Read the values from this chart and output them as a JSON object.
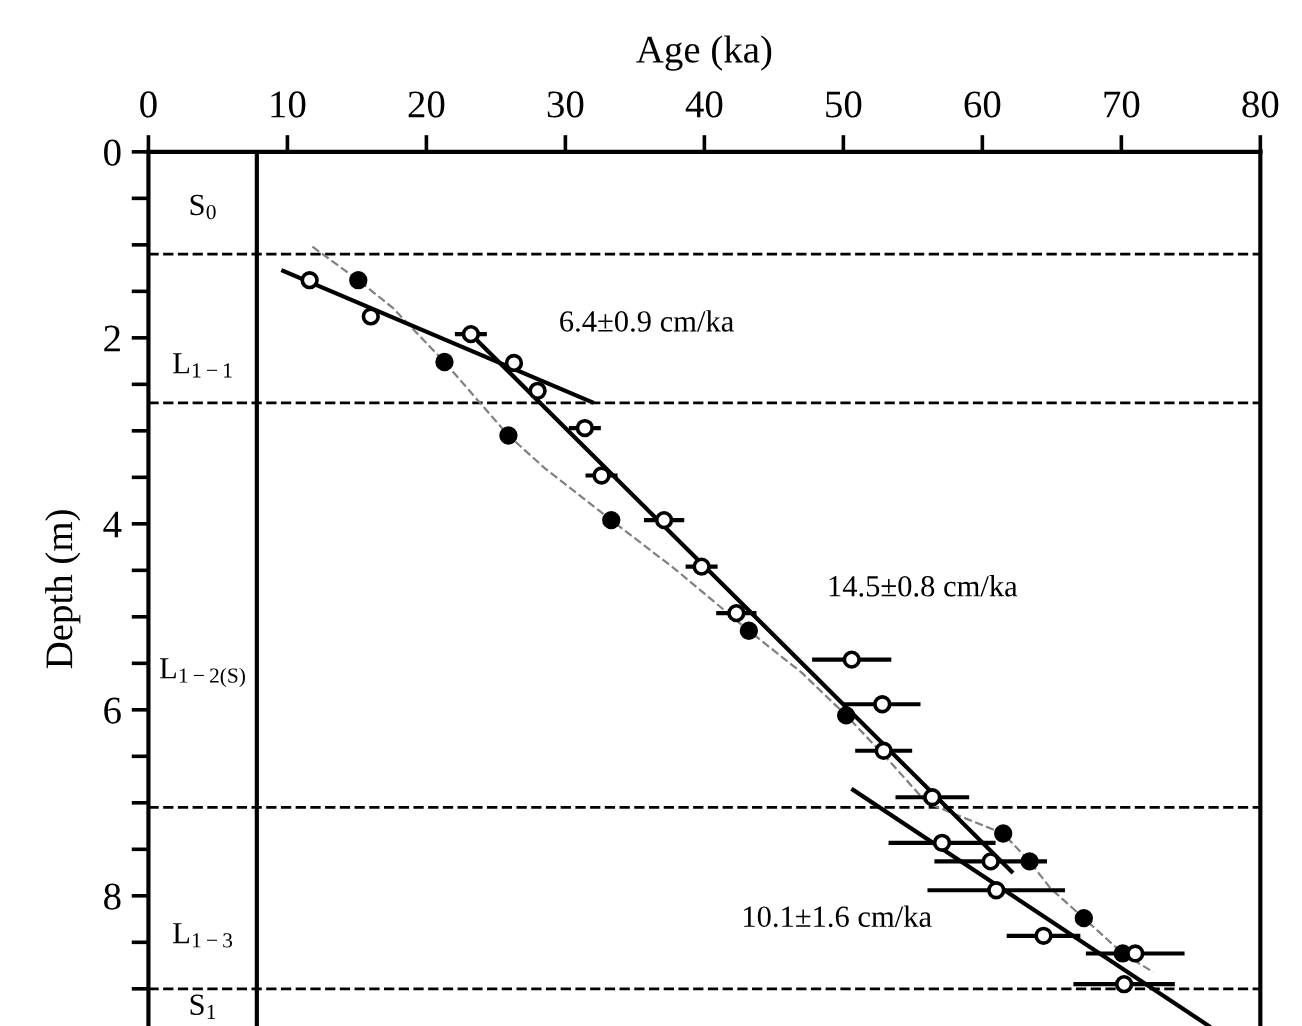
{
  "chart_data": {
    "type": "scatter",
    "xlabel": "Age (ka)",
    "ylabel": "Depth (m)",
    "xlim": [
      0,
      80
    ],
    "xticks": [
      0,
      10,
      20,
      30,
      40,
      50,
      60,
      70,
      80
    ],
    "ylim": [
      9.4,
      0
    ],
    "yticks": [
      0,
      {
        "value": 0.5,
        "label": null
      },
      {
        "value": 1,
        "label": null
      },
      {
        "value": 1.5,
        "label": null
      },
      2,
      {
        "value": 2.5,
        "label": null
      },
      {
        "value": 3,
        "label": null
      },
      {
        "value": 3.5,
        "label": null
      },
      4,
      {
        "value": 4.5,
        "label": null
      },
      {
        "value": 5,
        "label": null
      },
      {
        "value": 5.5,
        "label": null
      },
      6,
      {
        "value": 6.5,
        "label": null
      },
      {
        "value": 7,
        "label": null
      },
      {
        "value": 7.5,
        "label": null
      },
      8,
      {
        "value": 8.5,
        "label": null
      },
      {
        "value": 9,
        "label": null
      }
    ],
    "grid": false,
    "legend": false,
    "series": [
      {
        "type": "line",
        "line_style": "dashed",
        "color": "#808080",
        "x": [
          11.8,
          15.1,
          17.6,
          21.3,
          25.9,
          28.5,
          33.3,
          38,
          43.2,
          47,
          50.2,
          53,
          56,
          61.5,
          63.4,
          64.9,
          67.3,
          70.1,
          72.3
        ],
        "values": [
          1.02,
          1.38,
          1.68,
          2.26,
          3.05,
          3.4,
          3.96,
          4.5,
          5.15,
          5.6,
          6.06,
          6.5,
          7.0,
          7.33,
          7.63,
          7.92,
          8.24,
          8.62,
          8.82
        ]
      },
      {
        "type": "line",
        "line_style": "solid",
        "color": "#000000",
        "x": [
          9.7,
          31.9
        ],
        "values": [
          1.28,
          2.69
        ]
      },
      {
        "type": "line",
        "line_style": "solid",
        "color": "#000000",
        "x": [
          23.2,
          62.1
        ],
        "values": [
          1.96,
          7.74
        ]
      },
      {
        "type": "line",
        "line_style": "solid",
        "color": "#000000",
        "x": [
          50.7,
          76.3
        ],
        "values": [
          6.86,
          9.4
        ]
      },
      {
        "marker": "circle",
        "color": "#000000",
        "x": [
          15.1,
          21.3,
          25.9,
          33.3,
          43.2,
          50.2,
          61.5,
          63.4,
          67.3,
          70.1
        ],
        "values": [
          1.38,
          2.26,
          3.05,
          3.96,
          5.15,
          6.06,
          7.33,
          7.63,
          8.24,
          8.62
        ]
      },
      {
        "marker": "circle",
        "color": "#ffffff",
        "x": [
          11.6,
          16.0,
          23.2,
          26.3,
          28.0,
          31.4,
          32.6,
          37.1,
          39.8,
          42.3,
          50.6,
          52.8,
          52.9,
          56.4,
          57.1,
          60.6,
          61.0,
          64.4,
          71.0,
          70.2
        ],
        "values": [
          1.38,
          1.77,
          1.96,
          2.27,
          2.57,
          2.97,
          3.48,
          3.96,
          4.46,
          4.96,
          5.46,
          5.94,
          6.44,
          6.94,
          7.43,
          7.63,
          7.94,
          8.43,
          8.62,
          8.95
        ],
        "xerrors": [
          null,
          null,
          1.0,
          null,
          null,
          1.0,
          1.0,
          1.3,
          1.0,
          1.3,
          2.7,
          2.6,
          1.9,
          2.5,
          3.7,
          3.9,
          4.8,
          2.5,
          3.4,
          3.5
        ]
      }
    ],
    "ref_lines": [
      {
        "axis": "x",
        "value": 7.8,
        "line_style": "solid",
        "color": "#000000"
      },
      {
        "axis": "y",
        "value": 1.1,
        "line_style": "dashed",
        "color": "#000000"
      },
      {
        "axis": "y",
        "value": 2.7,
        "line_style": "dashed",
        "color": "#000000"
      },
      {
        "axis": "y",
        "value": 7.05,
        "line_style": "dashed",
        "color": "#000000"
      },
      {
        "axis": "y",
        "value": 9.0,
        "line_style": "dashed",
        "color": "#000000"
      }
    ],
    "annotations": [
      "6.4±0.9 cm/ka",
      "14.5±0.8 cm/ka",
      "10.1±1.6 cm/ka",
      "S$_{0}$",
      "L$_{1−1}$",
      "L$_{1−2(S)}$",
      "L$_{1−3}$",
      "S$_{1}$"
    ]
  }
}
